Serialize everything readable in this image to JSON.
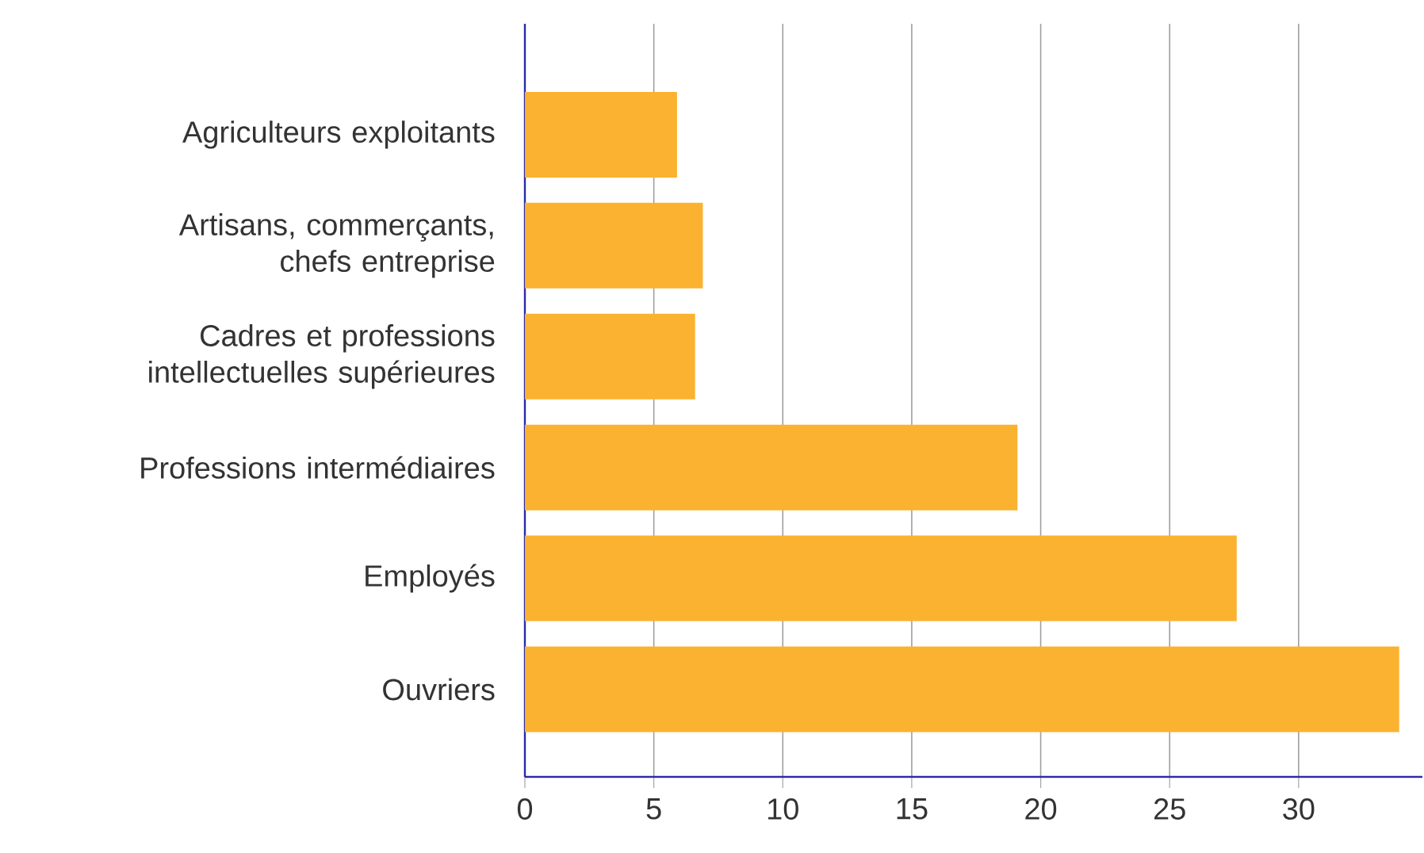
{
  "chart_data": {
    "type": "bar",
    "orientation": "horizontal",
    "categories": [
      "Agriculteurs exploitants",
      "Artisans, commerçants, chefs entreprise",
      "Cadres et professions intellectuelles supérieures",
      "Professions intermédiaires",
      "Employés",
      "Ouvriers"
    ],
    "values": [
      5.9,
      6.9,
      6.6,
      19.1,
      27.6,
      33.9
    ],
    "color": "#fbb230",
    "xlim": [
      0,
      34.8
    ],
    "xticks": [
      0,
      5,
      10,
      15,
      20,
      25,
      30
    ],
    "grid": "x"
  }
}
